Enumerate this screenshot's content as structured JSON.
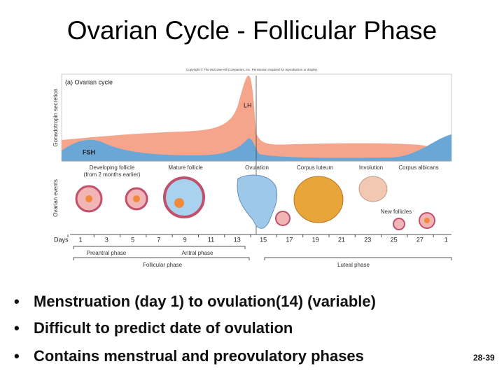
{
  "title": "Ovarian Cycle - Follicular Phase",
  "figure": {
    "copyright": "Copyright © The McGraw-Hill Companies, Inc. Permission required for reproduction or display.",
    "panel_label": "(a) Ovarian cycle",
    "axis_labels": [
      "Gonadotropin secretion",
      "Ovarian events"
    ],
    "hormones": [
      "LH",
      "FSH"
    ],
    "events": [
      "Developing follicle",
      "(from 2 months earlier)",
      "Mature follicle",
      "Ovulation",
      "Corpus luteum",
      "Involution",
      "Corpus albicans"
    ],
    "new_follicles": "New follicles",
    "days_label": "Days",
    "days": [
      "1",
      "3",
      "5",
      "7",
      "9",
      "11",
      "13",
      "15",
      "17",
      "19",
      "21",
      "23",
      "25",
      "27",
      "1"
    ],
    "phases": [
      "Preantral phase",
      "Antral phase",
      "Follicular phase",
      "Luteal phase"
    ]
  },
  "bullets": [
    "Menstruation (day 1) to ovulation(14) (variable)",
    "Difficult to predict date of ovulation",
    "Contains menstrual and preovulatory phases"
  ],
  "page_number": "28-39"
}
